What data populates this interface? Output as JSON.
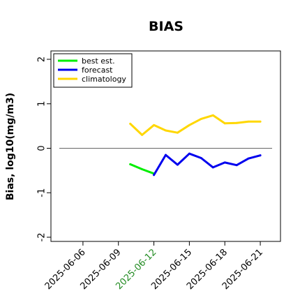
{
  "chart_data": {
    "type": "line",
    "title": "BIAS",
    "xlabel": "",
    "ylabel": "Bias, log10(mg/m3)",
    "ylim": [
      -2,
      2
    ],
    "yticks": [
      2,
      1,
      0,
      -1,
      -2
    ],
    "xticks": [
      {
        "label": "2025-06-06",
        "date": "2025-06-06",
        "color": "#000000"
      },
      {
        "label": "2025-06-09",
        "date": "2025-06-09",
        "color": "#000000"
      },
      {
        "label": "2025-06-12",
        "date": "2025-06-12",
        "color": "#228B22"
      },
      {
        "label": "2025-06-15",
        "date": "2025-06-15",
        "color": "#000000"
      },
      {
        "label": "2025-06-18",
        "date": "2025-06-18",
        "color": "#000000"
      },
      {
        "label": "2025-06-21",
        "date": "2025-06-21",
        "color": "#000000"
      }
    ],
    "xlim": [
      "2025-06-04",
      "2025-06-22"
    ],
    "zero_line": 0,
    "legend": {
      "placement": "top-left"
    },
    "series": [
      {
        "name": "best est.",
        "color": "#00ee00",
        "points": [
          {
            "x": "2025-06-10",
            "y": -0.36
          },
          {
            "x": "2025-06-11",
            "y": -0.47
          },
          {
            "x": "2025-06-12",
            "y": -0.57
          }
        ]
      },
      {
        "name": "forecast",
        "color": "#0000ee",
        "points": [
          {
            "x": "2025-06-12",
            "y": -0.6
          },
          {
            "x": "2025-06-13",
            "y": -0.15
          },
          {
            "x": "2025-06-14",
            "y": -0.37
          },
          {
            "x": "2025-06-15",
            "y": -0.12
          },
          {
            "x": "2025-06-16",
            "y": -0.22
          },
          {
            "x": "2025-06-17",
            "y": -0.43
          },
          {
            "x": "2025-06-18",
            "y": -0.32
          },
          {
            "x": "2025-06-19",
            "y": -0.38
          },
          {
            "x": "2025-06-20",
            "y": -0.23
          },
          {
            "x": "2025-06-21",
            "y": -0.16
          }
        ]
      },
      {
        "name": "climatology",
        "color": "#ffd700",
        "points": [
          {
            "x": "2025-06-10",
            "y": 0.55
          },
          {
            "x": "2025-06-11",
            "y": 0.3
          },
          {
            "x": "2025-06-12",
            "y": 0.52
          },
          {
            "x": "2025-06-13",
            "y": 0.4
          },
          {
            "x": "2025-06-14",
            "y": 0.35
          },
          {
            "x": "2025-06-15",
            "y": 0.52
          },
          {
            "x": "2025-06-16",
            "y": 0.66
          },
          {
            "x": "2025-06-17",
            "y": 0.74
          },
          {
            "x": "2025-06-18",
            "y": 0.56
          },
          {
            "x": "2025-06-19",
            "y": 0.57
          },
          {
            "x": "2025-06-20",
            "y": 0.6
          },
          {
            "x": "2025-06-21",
            "y": 0.6
          }
        ]
      }
    ]
  }
}
